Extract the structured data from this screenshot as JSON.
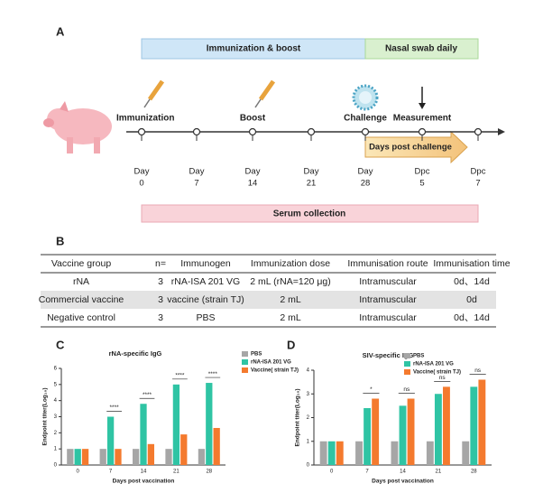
{
  "panel_a": {
    "label": "A",
    "phase_immunization": "Immunization & boost",
    "phase_swab": "Nasal swab daily",
    "events": [
      "Immunization",
      "Boost",
      "Challenge",
      "Measurement"
    ],
    "days": [
      [
        "Day",
        "0"
      ],
      [
        "Day",
        "7"
      ],
      [
        "Day",
        "14"
      ],
      [
        "Day",
        "21"
      ],
      [
        "Day",
        "28"
      ],
      [
        "Dpc",
        "5"
      ],
      [
        "Dpc",
        "7"
      ]
    ],
    "post_challenge": "Days post challenge",
    "serum": "Serum  collection"
  },
  "panel_b": {
    "label": "B",
    "table": {
      "header": [
        "Vaccine group",
        "n=",
        "Immunogen",
        "Immunization dose",
        "Immunisation route",
        "Immunisation time"
      ],
      "rows": [
        [
          "rNA",
          "3",
          "rNA-ISA 201 VG",
          "2 mL (rNA=120 μg)",
          "Intramuscular",
          "0d、14d"
        ],
        [
          "Commercial vaccine",
          "3",
          "vaccine (strain TJ)",
          "2 mL",
          "Intramuscular",
          "0d"
        ],
        [
          "Negative control",
          "3",
          "PBS",
          "2 mL",
          "Intramuscular",
          "0d、14d"
        ]
      ]
    }
  },
  "chart_data": [
    {
      "type": "bar",
      "panel_label": "C",
      "title": "rNA-specific IgG",
      "x_label": "Days post vaccination",
      "y_label": "Endpoint titer(Log₁₀)",
      "categories": [
        "0",
        "7",
        "14",
        "21",
        "28"
      ],
      "series": [
        {
          "name": "PBS",
          "color": "#a6a6a6",
          "values": [
            1.0,
            1.0,
            1.0,
            1.0,
            1.0
          ]
        },
        {
          "name": "rNA-ISA 201 VG",
          "color": "#2fc4a4",
          "values": [
            1.0,
            3.0,
            3.8,
            5.0,
            5.1
          ]
        },
        {
          "name": "Vaccine( strain TJ)",
          "color": "#f47a2e",
          "values": [
            1.0,
            1.0,
            1.3,
            1.9,
            2.3
          ]
        }
      ],
      "significance": [
        null,
        "****",
        "****",
        "****",
        "****"
      ],
      "ylim": [
        0,
        6
      ],
      "yticks": [
        0,
        1,
        2,
        3,
        4,
        5,
        6
      ]
    },
    {
      "type": "bar",
      "panel_label": "D",
      "title": "SIV-specific IgG",
      "x_label": "Days post vaccination",
      "y_label": "Endpoint titer(Log₁₀)",
      "categories": [
        "0",
        "7",
        "14",
        "21",
        "28"
      ],
      "series": [
        {
          "name": "PBS",
          "color": "#a6a6a6",
          "values": [
            1.0,
            1.0,
            1.0,
            1.0,
            1.0
          ]
        },
        {
          "name": "rNA-ISA 201 VG",
          "color": "#2fc4a4",
          "values": [
            1.0,
            2.4,
            2.5,
            3.0,
            3.3
          ]
        },
        {
          "name": "Vaccine( strain TJ)",
          "color": "#f47a2e",
          "values": [
            1.0,
            2.8,
            2.8,
            3.3,
            3.6
          ]
        }
      ],
      "significance": [
        null,
        "*",
        "ns",
        "ns",
        "ns"
      ],
      "ylim": [
        0,
        4
      ],
      "yticks": [
        0,
        1,
        2,
        3,
        4
      ]
    }
  ]
}
